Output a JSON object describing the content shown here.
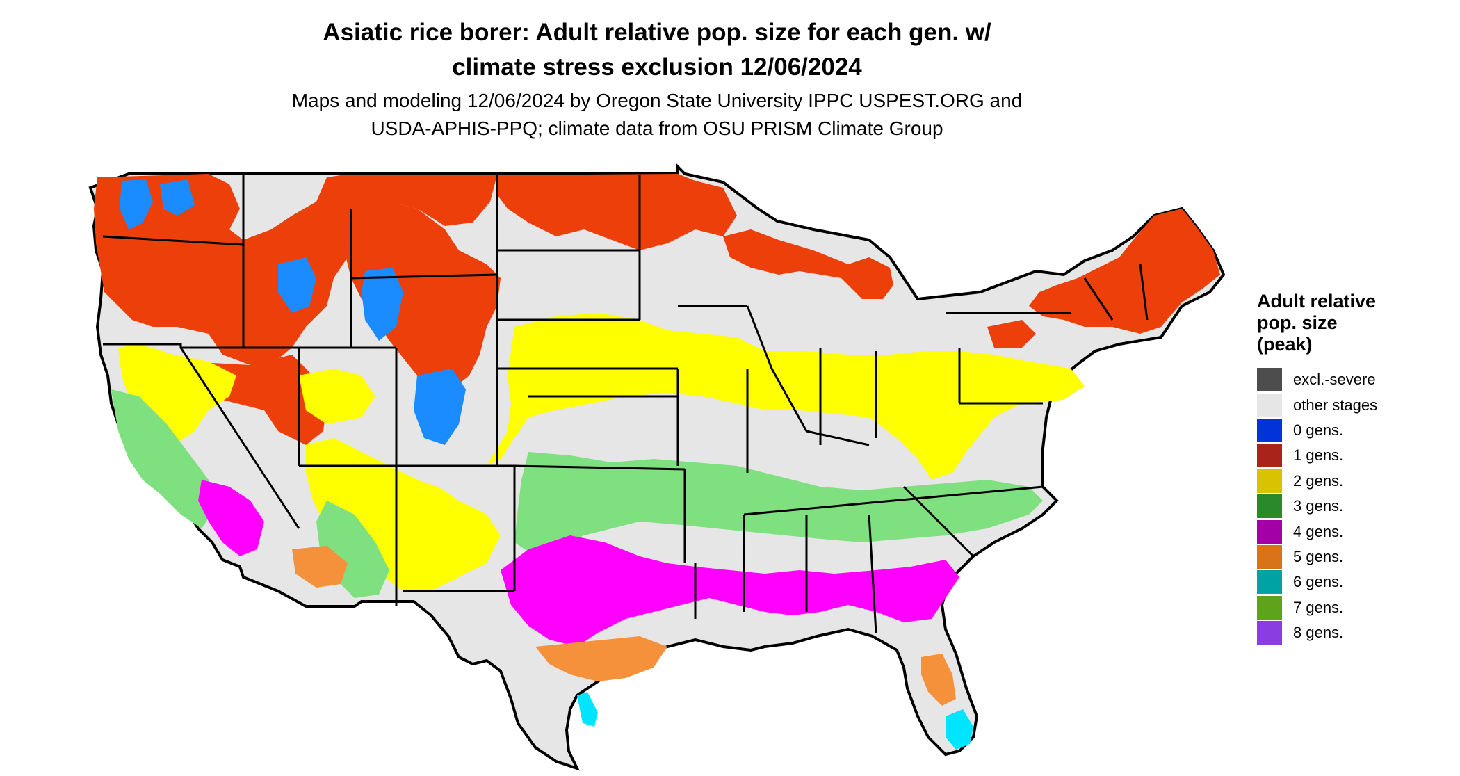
{
  "title_lines": [
    "Asiatic rice borer: Adult relative pop. size for each gen. w/",
    "climate stress exclusion 12/06/2024"
  ],
  "subtitle_lines": [
    "Maps and modeling 12/06/2024 by Oregon State University IPPC USPEST.ORG and",
    "USDA-APHIS-PPQ; climate data from OSU PRISM Climate Group"
  ],
  "legend": {
    "title_lines": [
      "Adult relative",
      "pop. size",
      "(peak)"
    ],
    "items": [
      {
        "label": "excl.-severe",
        "color": "#4d4d4d"
      },
      {
        "label": "other stages",
        "color": "#e6e6e6"
      },
      {
        "label": "0 gens.",
        "color": "#0033d9"
      },
      {
        "label": "1 gens.",
        "color": "#a8231a"
      },
      {
        "label": "2 gens.",
        "color": "#d9c200"
      },
      {
        "label": "3 gens.",
        "color": "#2a8a2a"
      },
      {
        "label": "4 gens.",
        "color": "#a300a8"
      },
      {
        "label": "5 gens.",
        "color": "#d9731a"
      },
      {
        "label": "6 gens.",
        "color": "#00a3a3"
      },
      {
        "label": "7 gens.",
        "color": "#5fa31a"
      },
      {
        "label": "8 gens.",
        "color": "#8a3de0"
      }
    ]
  },
  "map_colors": {
    "land_other_stages": "#e6e6e6",
    "gen1_red": "#ec3f0a",
    "gen2_yellow": "#ffff00",
    "gen3_green": "#7ee07e",
    "gen4_magenta": "#ff00ff",
    "gen5_orange": "#f5913a",
    "gen6_cyan": "#00e5ff",
    "gen0_blue": "#1a8cff",
    "boundary": "#000000"
  }
}
